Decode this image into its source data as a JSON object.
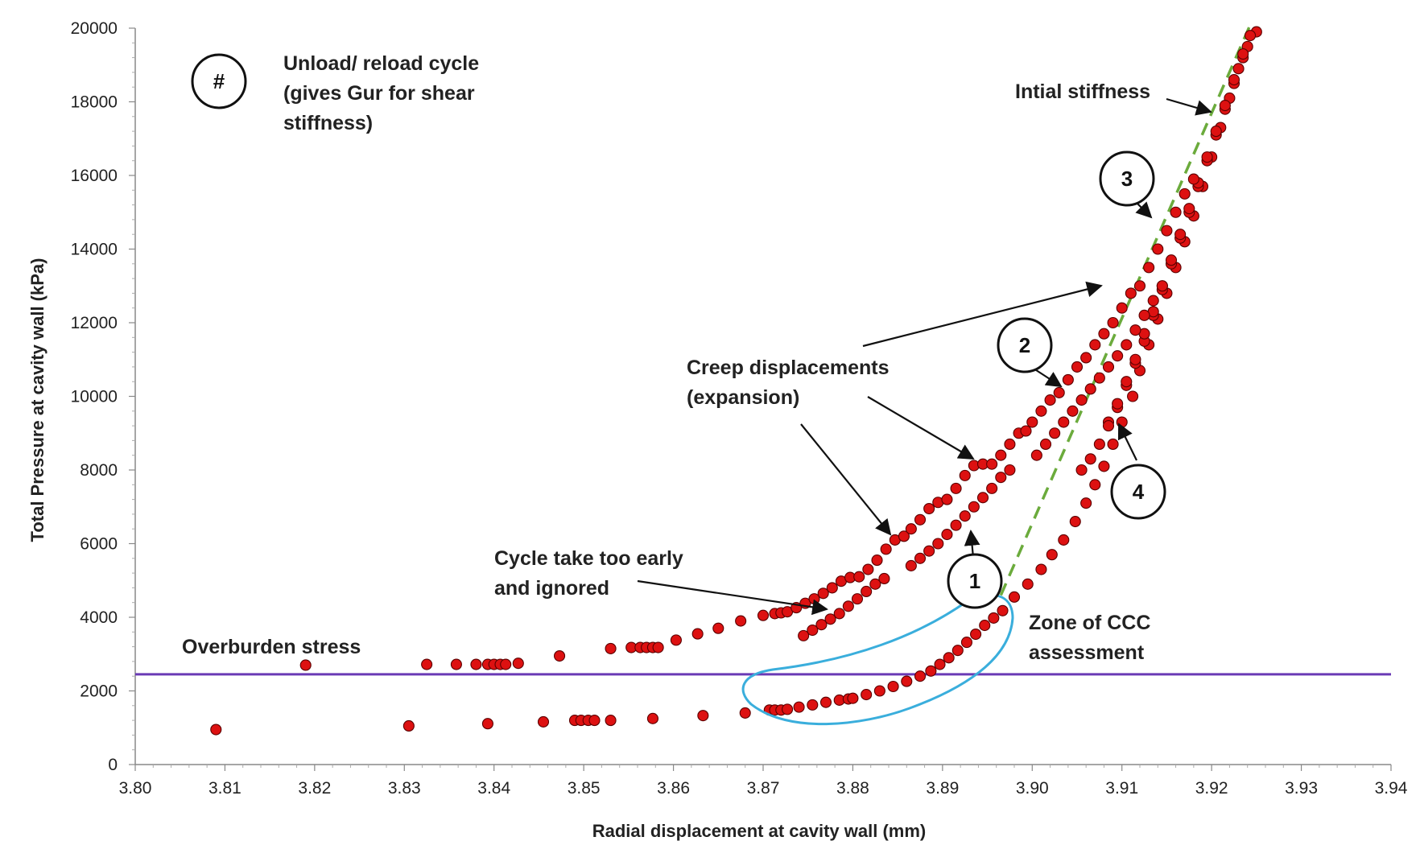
{
  "chart_data": {
    "type": "scatter",
    "xlabel": "Radial displacement at cavity wall (mm)",
    "ylabel": "Total Pressure at cavity wall (kPa)",
    "xlim": [
      3.8,
      3.94
    ],
    "ylim": [
      0,
      20000
    ],
    "x_ticks": [
      "3.80",
      "3.81",
      "3.82",
      "3.83",
      "3.84",
      "3.85",
      "3.86",
      "3.87",
      "3.88",
      "3.89",
      "3.90",
      "3.91",
      "3.92",
      "3.93",
      "3.94"
    ],
    "y_ticks": [
      "0",
      "2000",
      "4000",
      "6000",
      "8000",
      "10000",
      "12000",
      "14000",
      "16000",
      "18000",
      "20000"
    ],
    "grid": false,
    "colors": {
      "marker": "#dd1111",
      "marker_edge": "#5a0000",
      "overburden": "#6a3ab5",
      "stiffness": "#6bab3c",
      "ccc_zone": "#3aaedc"
    },
    "reference_lines": {
      "overburden": {
        "label": "Overburden stress",
        "y": 2450
      },
      "initial_stiffness": {
        "label": "Intial stiffness",
        "from": [
          3.8965,
          4600
        ],
        "to": [
          3.9245,
          20200
        ]
      }
    },
    "annotations": {
      "legend_symbol": "#",
      "legend_text": [
        "Unload/ reload cycle",
        "(gives Gur for shear",
        "stiffness)"
      ],
      "creep": [
        "Creep displacements",
        "(expansion)"
      ],
      "early_cycle": [
        "Cycle take too early",
        "and ignored"
      ],
      "ccc_zone": [
        "Zone of CCC",
        "assessment"
      ],
      "cycle_labels": [
        "1",
        "2",
        "3",
        "4"
      ]
    },
    "series": [
      {
        "points": [
          [
            3.809,
            950
          ],
          [
            3.8305,
            1050
          ],
          [
            3.8393,
            1110
          ],
          [
            3.8455,
            1160
          ],
          [
            3.849,
            1200
          ],
          [
            3.8497,
            1200
          ],
          [
            3.8505,
            1200
          ],
          [
            3.8512,
            1200
          ],
          [
            3.853,
            1200
          ],
          [
            3.8577,
            1250
          ],
          [
            3.8633,
            1330
          ],
          [
            3.868,
            1400
          ],
          [
            3.8707,
            1480
          ],
          [
            3.8713,
            1480
          ],
          [
            3.872,
            1480
          ],
          [
            3.8727,
            1500
          ],
          [
            3.874,
            1560
          ],
          [
            3.8755,
            1620
          ],
          [
            3.877,
            1690
          ],
          [
            3.8785,
            1750
          ],
          [
            3.8795,
            1780
          ],
          [
            3.88,
            1800
          ],
          [
            3.8815,
            1900
          ],
          [
            3.883,
            2000
          ],
          [
            3.8845,
            2120
          ],
          [
            3.886,
            2260
          ],
          [
            3.8875,
            2400
          ],
          [
            3.8887,
            2540
          ],
          [
            3.8897,
            2720
          ],
          [
            3.8907,
            2900
          ],
          [
            3.8917,
            3100
          ],
          [
            3.8927,
            3320
          ],
          [
            3.8937,
            3540
          ],
          [
            3.8947,
            3780
          ],
          [
            3.8957,
            3980
          ],
          [
            3.8967,
            4180
          ],
          [
            3.898,
            4550
          ],
          [
            3.8995,
            4900
          ],
          [
            3.901,
            5300
          ],
          [
            3.9022,
            5700
          ],
          [
            3.9035,
            6100
          ],
          [
            3.9048,
            6600
          ],
          [
            3.906,
            7100
          ],
          [
            3.907,
            7600
          ],
          [
            3.908,
            8100
          ],
          [
            3.909,
            8700
          ],
          [
            3.91,
            9300
          ],
          [
            3.9112,
            10000
          ],
          [
            3.912,
            10700
          ],
          [
            3.913,
            11400
          ],
          [
            3.914,
            12100
          ],
          [
            3.915,
            12800
          ],
          [
            3.916,
            13500
          ],
          [
            3.917,
            14200
          ],
          [
            3.918,
            14900
          ],
          [
            3.919,
            15700
          ],
          [
            3.92,
            16500
          ],
          [
            3.921,
            17300
          ],
          [
            3.922,
            18100
          ],
          [
            3.923,
            18900
          ],
          [
            3.924,
            19500
          ],
          [
            3.925,
            19900
          ],
          [
            3.9243,
            19800
          ],
          [
            3.9235,
            19200
          ],
          [
            3.9225,
            18500
          ],
          [
            3.9215,
            17800
          ],
          [
            3.9205,
            17100
          ],
          [
            3.9195,
            16400
          ],
          [
            3.9185,
            15700
          ],
          [
            3.9175,
            15000
          ],
          [
            3.9165,
            14300
          ],
          [
            3.9155,
            13600
          ],
          [
            3.9145,
            12900
          ],
          [
            3.9135,
            12200
          ],
          [
            3.9125,
            11500
          ],
          [
            3.9115,
            10900
          ],
          [
            3.9105,
            10300
          ],
          [
            3.9095,
            9700
          ],
          [
            3.9085,
            9300
          ],
          [
            3.9235,
            19300
          ],
          [
            3.9225,
            18600
          ],
          [
            3.9215,
            17900
          ],
          [
            3.9205,
            17200
          ],
          [
            3.9195,
            16500
          ],
          [
            3.9185,
            15800
          ],
          [
            3.9175,
            15100
          ],
          [
            3.9165,
            14400
          ],
          [
            3.9155,
            13700
          ],
          [
            3.9145,
            13000
          ],
          [
            3.9135,
            12300
          ],
          [
            3.9125,
            11700
          ],
          [
            3.9115,
            11000
          ],
          [
            3.9105,
            10400
          ],
          [
            3.9095,
            9800
          ],
          [
            3.9085,
            9200
          ],
          [
            3.9075,
            8700
          ],
          [
            3.9065,
            8300
          ],
          [
            3.9055,
            8000
          ],
          [
            3.819,
            2700
          ],
          [
            3.8325,
            2720
          ],
          [
            3.8358,
            2720
          ],
          [
            3.838,
            2720
          ],
          [
            3.8393,
            2720
          ],
          [
            3.84,
            2720
          ],
          [
            3.8407,
            2720
          ],
          [
            3.8413,
            2720
          ],
          [
            3.8427,
            2750
          ],
          [
            3.8473,
            2950
          ],
          [
            3.853,
            3150
          ],
          [
            3.8553,
            3180
          ],
          [
            3.8563,
            3180
          ],
          [
            3.857,
            3180
          ],
          [
            3.8577,
            3180
          ],
          [
            3.8583,
            3180
          ],
          [
            3.8603,
            3380
          ],
          [
            3.8627,
            3550
          ],
          [
            3.865,
            3700
          ],
          [
            3.8675,
            3900
          ],
          [
            3.87,
            4050
          ],
          [
            3.8713,
            4100
          ],
          [
            3.872,
            4120
          ],
          [
            3.8727,
            4150
          ],
          [
            3.8737,
            4260
          ],
          [
            3.8747,
            4380
          ],
          [
            3.8757,
            4500
          ],
          [
            3.8767,
            4650
          ],
          [
            3.8777,
            4800
          ],
          [
            3.8787,
            4980
          ],
          [
            3.8797,
            5080
          ],
          [
            3.8807,
            5100
          ],
          [
            3.8817,
            5300
          ],
          [
            3.8827,
            5550
          ],
          [
            3.8837,
            5850
          ],
          [
            3.8847,
            6100
          ],
          [
            3.8857,
            6200
          ],
          [
            3.8865,
            6400
          ],
          [
            3.8875,
            6650
          ],
          [
            3.8885,
            6950
          ],
          [
            3.8895,
            7120
          ],
          [
            3.8905,
            7200
          ],
          [
            3.8915,
            7500
          ],
          [
            3.8925,
            7850
          ],
          [
            3.8935,
            8120
          ],
          [
            3.8945,
            8160
          ],
          [
            3.8955,
            8160
          ],
          [
            3.8965,
            8400
          ],
          [
            3.8975,
            8700
          ],
          [
            3.8985,
            9000
          ],
          [
            3.8993,
            9060
          ],
          [
            3.9,
            9300
          ],
          [
            3.901,
            9600
          ],
          [
            3.902,
            9900
          ],
          [
            3.903,
            10100
          ],
          [
            3.904,
            10450
          ],
          [
            3.905,
            10800
          ],
          [
            3.906,
            11050
          ],
          [
            3.907,
            11400
          ],
          [
            3.908,
            11700
          ],
          [
            3.909,
            12000
          ],
          [
            3.91,
            12400
          ],
          [
            3.911,
            12800
          ],
          [
            3.912,
            13000
          ],
          [
            3.913,
            13500
          ],
          [
            3.914,
            14000
          ],
          [
            3.915,
            14500
          ],
          [
            3.916,
            15000
          ],
          [
            3.917,
            15500
          ],
          [
            3.918,
            15900
          ],
          [
            3.8745,
            3500
          ],
          [
            3.8755,
            3650
          ],
          [
            3.8765,
            3800
          ],
          [
            3.8775,
            3950
          ],
          [
            3.8785,
            4100
          ],
          [
            3.8795,
            4300
          ],
          [
            3.8805,
            4500
          ],
          [
            3.8815,
            4700
          ],
          [
            3.8825,
            4900
          ],
          [
            3.8835,
            5050
          ],
          [
            3.8865,
            5400
          ],
          [
            3.8875,
            5600
          ],
          [
            3.8885,
            5800
          ],
          [
            3.8895,
            6000
          ],
          [
            3.8905,
            6250
          ],
          [
            3.8915,
            6500
          ],
          [
            3.8925,
            6750
          ],
          [
            3.8935,
            7000
          ],
          [
            3.8945,
            7250
          ],
          [
            3.8955,
            7500
          ],
          [
            3.8965,
            7800
          ],
          [
            3.8975,
            8000
          ],
          [
            3.9005,
            8400
          ],
          [
            3.9015,
            8700
          ],
          [
            3.9025,
            9000
          ],
          [
            3.9035,
            9300
          ],
          [
            3.9045,
            9600
          ],
          [
            3.9055,
            9900
          ],
          [
            3.9065,
            10200
          ],
          [
            3.9075,
            10500
          ],
          [
            3.9085,
            10800
          ],
          [
            3.9095,
            11100
          ],
          [
            3.9105,
            11400
          ],
          [
            3.9115,
            11800
          ],
          [
            3.9125,
            12200
          ],
          [
            3.9135,
            12600
          ],
          [
            3.9145,
            13000
          ]
        ]
      }
    ]
  }
}
